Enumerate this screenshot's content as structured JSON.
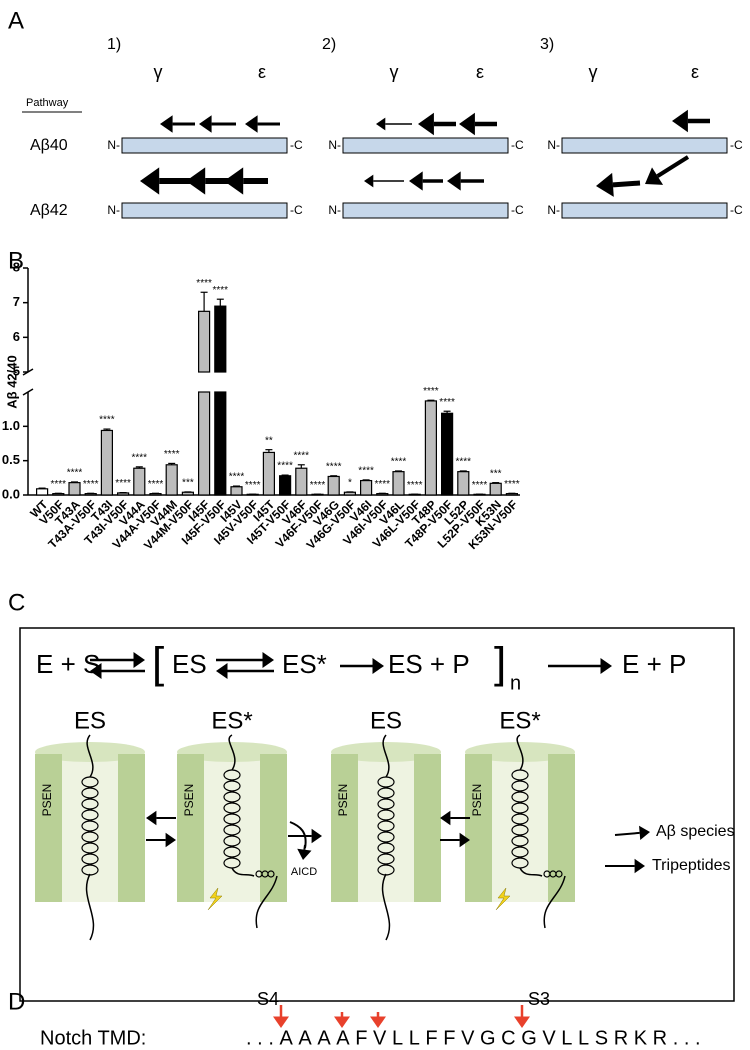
{
  "panel_a": {
    "label": "A",
    "columns": [
      "1)",
      "2)",
      "3)"
    ],
    "sites": [
      "γ",
      "ε"
    ],
    "pathway_heading": "Pathway",
    "rows": [
      "Aβ40",
      "Aβ42"
    ],
    "n_terminus": "N-",
    "c_terminus": "-C"
  },
  "chart_data": {
    "type": "bar",
    "label": "B",
    "ylabel": "Aβ 42/40",
    "categories": [
      "WT",
      "V50F",
      "T43A",
      "T43A-V50F",
      "T43I",
      "T43I-V50F",
      "V44A",
      "V44A-V50F",
      "V44M",
      "V44M-V50F",
      "I45F",
      "I45F-V50F",
      "I45V",
      "I45V-V50F",
      "I45T",
      "I45T-V50F",
      "V46F",
      "V46F-V50F",
      "V46G",
      "V46G-V50F",
      "V46I",
      "V46I-V50F",
      "V46L",
      "V46L-V50F",
      "T48P",
      "T48P-V50F",
      "L52P",
      "L52P-V50F",
      "K53N",
      "K53N-V50F"
    ],
    "values": [
      0.09,
      0.02,
      0.18,
      0.02,
      0.94,
      0.03,
      0.39,
      0.02,
      0.44,
      0.04,
      6.75,
      6.9,
      0.12,
      0.01,
      0.62,
      0.28,
      0.39,
      0.01,
      0.27,
      0.04,
      0.21,
      0.02,
      0.34,
      0.01,
      1.37,
      1.19,
      0.34,
      0.01,
      0.17,
      0.02
    ],
    "errors": [
      0.01,
      0.005,
      0.01,
      0.005,
      0.02,
      0.005,
      0.02,
      0.005,
      0.02,
      0.005,
      0.55,
      0.2,
      0.01,
      0.002,
      0.04,
      0.01,
      0.05,
      0.002,
      0.01,
      0.005,
      0.01,
      0.005,
      0.01,
      0.002,
      0.01,
      0.03,
      0.01,
      0.002,
      0.01,
      0.005
    ],
    "colors": [
      "#ffffff",
      "#bdbdbd",
      "#bdbdbd",
      "#bdbdbd",
      "#bdbdbd",
      "#bdbdbd",
      "#bdbdbd",
      "#bdbdbd",
      "#bdbdbd",
      "#bdbdbd",
      "#bdbdbd",
      "#000000",
      "#bdbdbd",
      "#bdbdbd",
      "#bdbdbd",
      "#000000",
      "#bdbdbd",
      "#bdbdbd",
      "#bdbdbd",
      "#bdbdbd",
      "#bdbdbd",
      "#bdbdbd",
      "#bdbdbd",
      "#bdbdbd",
      "#bdbdbd",
      "#000000",
      "#bdbdbd",
      "#bdbdbd",
      "#bdbdbd",
      "#bdbdbd"
    ],
    "annotations": [
      null,
      "****",
      "****",
      "****",
      "****",
      "****",
      "****",
      "****",
      "****",
      "***",
      "****",
      "****",
      "****",
      "****",
      "**",
      "****",
      "****",
      "****",
      "****",
      "*",
      "****",
      "****",
      "****",
      "****",
      "****",
      "****",
      "****",
      "****",
      "***",
      "****"
    ],
    "ylim": [
      0,
      8
    ],
    "ybreak": [
      1.5,
      5
    ],
    "yticks": [
      {
        "value": 0,
        "label": "0.0"
      },
      {
        "value": 0.5,
        "label": "0.5"
      },
      {
        "value": 1,
        "label": "1.0"
      },
      5,
      6,
      7,
      8
    ]
  },
  "panel_c": {
    "label": "C",
    "scheme": {
      "reactants": "E + S",
      "complex": "ES",
      "activated": "ES*",
      "intermediate": "ES + P",
      "repeat": "n",
      "products": "E + P"
    },
    "states": [
      "ES",
      "ES*",
      "ES",
      "ES*"
    ],
    "protein": "PSEN",
    "released": "AICD",
    "outputs": [
      "Aβ species",
      "Tripeptides"
    ]
  },
  "panel_d": {
    "label": "D",
    "sites": [
      "S4",
      "S3"
    ],
    "name": "Notch TMD:",
    "sequence": "...AAAAFVLLFFVGCGVLLSRKR..."
  }
}
